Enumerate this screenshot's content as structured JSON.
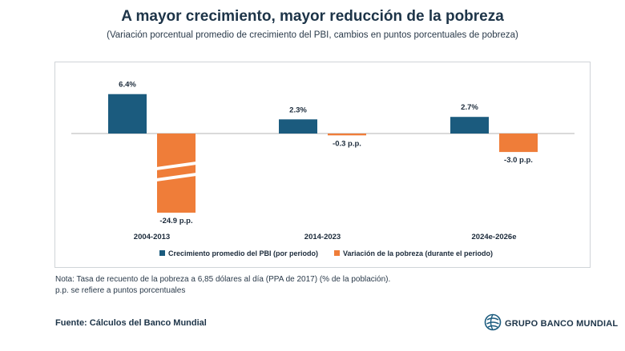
{
  "header": {
    "title": "A mayor crecimiento, mayor reducción de la pobreza",
    "subtitle": "(Variación porcentual promedio de crecimiento del PBI, cambios en puntos porcentuales de pobreza)"
  },
  "colors": {
    "gdp": "#1b5b7e",
    "poverty": "#ef7d39",
    "axis": "#b5b5b5"
  },
  "chart_data": {
    "type": "bar",
    "categories": [
      "2004-2013",
      "2014-2023",
      "2024e-2026e"
    ],
    "series": [
      {
        "name": "Crecimiento promedio del PBI (por periodo)",
        "values": [
          6.4,
          2.3,
          2.7
        ],
        "labels": [
          "6.4%",
          "2.3%",
          "2.7%"
        ]
      },
      {
        "name": "Variación de la pobreza (durante el periodo)",
        "values": [
          -24.9,
          -0.3,
          -3.0
        ],
        "labels": [
          "-24.9 p.p.",
          "-0.3 p.p.",
          "-3.0 p.p."
        ]
      }
    ],
    "axis_break": {
      "series": 1,
      "category": 0
    },
    "grid": false,
    "legend_position": "bottom"
  },
  "footer": {
    "note_line1": "Nota: Tasa de recuento de la pobreza a 6,85 dólares al día (PPA de 2017) (% de la población).",
    "note_line2": "p.p. se refiere a puntos porcentuales",
    "source": "Fuente: Cálculos del Banco Mundial",
    "logo_text": "GRUPO BANCO MUNDIAL",
    "logo_icon": "globe-icon"
  }
}
